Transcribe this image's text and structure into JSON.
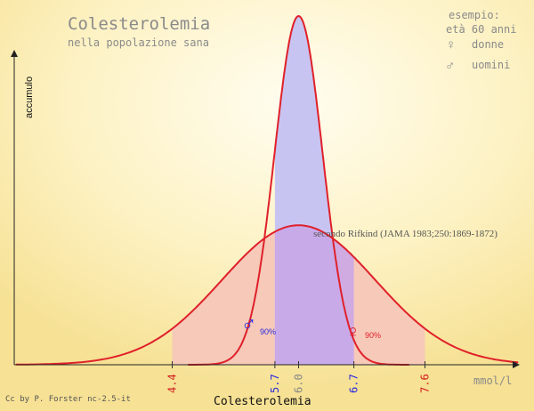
{
  "chart_data": {
    "type": "area",
    "title": "Colesterolemia",
    "subtitle": "nella popolazione sana",
    "xlabel": "Colesterolemia",
    "ylabel": "accumulo",
    "x_unit": "mmol/l",
    "example_heading": "esempio:",
    "example_age": "età 60 anni",
    "source_note": "secondo Rifkind (JAMA 1983;250:1869-1872)",
    "credit": "Cc by P. Forster nc-2.5-it",
    "xlim": [
      2.4,
      8.8
    ],
    "series": [
      {
        "name": "donne",
        "symbol": "♀",
        "mean": 6.0,
        "interval_90": [
          4.4,
          7.6
        ],
        "interval_label": "90%",
        "peak_relative": 0.4
      },
      {
        "name": "uomini",
        "symbol": "♂",
        "mean": 6.0,
        "interval_90": [
          5.7,
          6.7
        ],
        "interval_label": "90%",
        "peak_relative": 1.0
      }
    ],
    "ticks": [
      {
        "value": 4.4,
        "label": "4.4",
        "color": "#d42020"
      },
      {
        "value": 5.7,
        "label": "5.7",
        "color": "#2a2ae0"
      },
      {
        "value": 6.0,
        "label": "6.0",
        "color": "#888888"
      },
      {
        "value": 6.7,
        "label": "6.7",
        "color": "#2a2ae0"
      },
      {
        "value": 7.6,
        "label": "7.6",
        "color": "#d42020"
      }
    ],
    "colors": {
      "women": "#e0202a",
      "men": "#2a2ae0",
      "women_fill": "#f6c9b9",
      "men_fill": "#c8c4f2",
      "overlap_fill": "#c9a6e8",
      "text": "#8a8a8a"
    }
  }
}
